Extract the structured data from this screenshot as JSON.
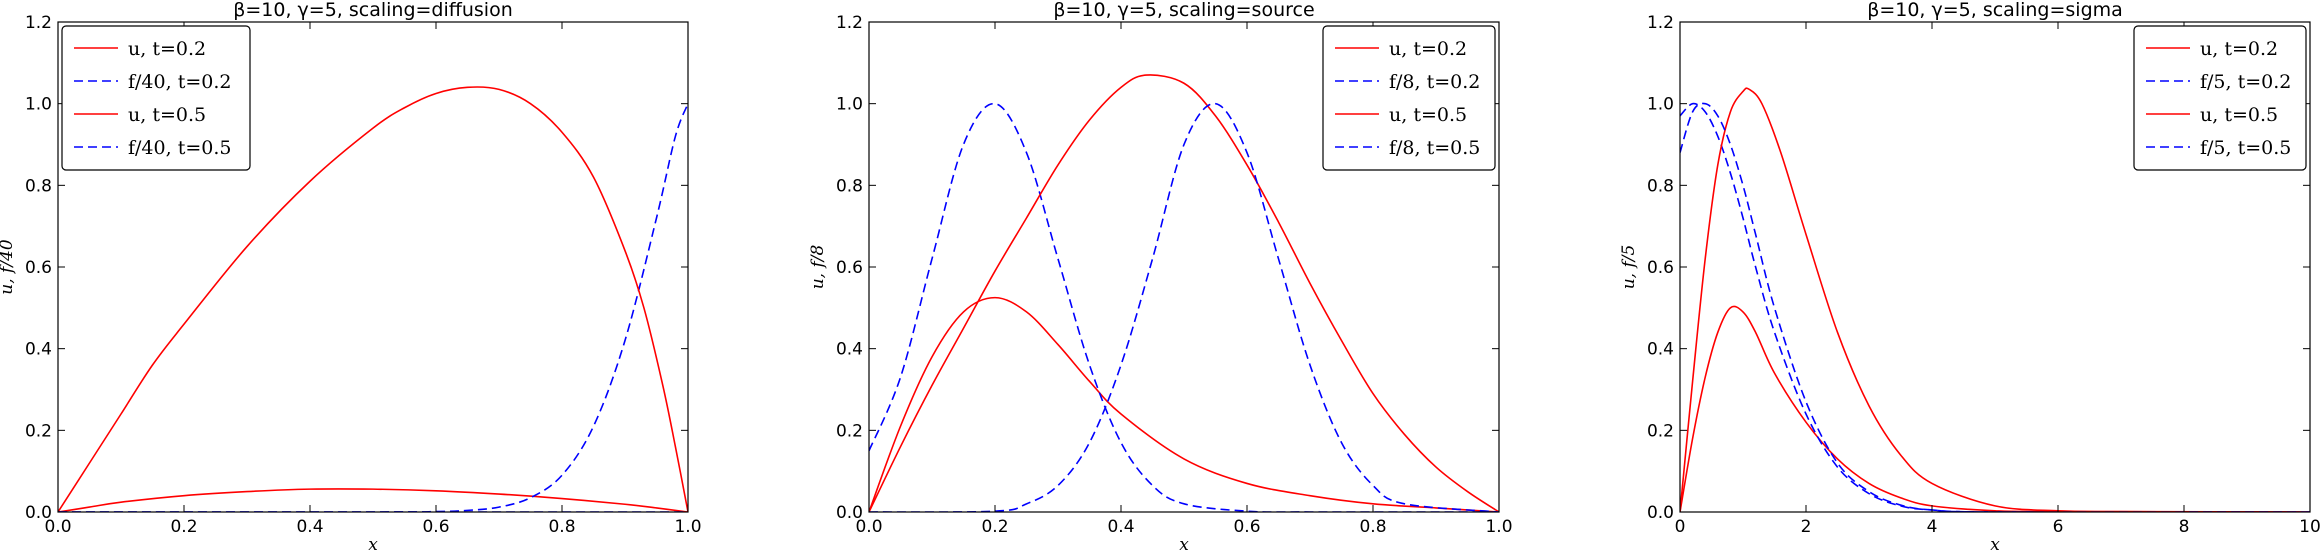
{
  "chart_data": [
    {
      "type": "line",
      "title": "β=10, γ=5, scaling=diffusion",
      "xlabel": "x",
      "ylabel": "u, f/40",
      "xlim": [
        0,
        1
      ],
      "ylim": [
        0,
        1.2
      ],
      "xticks": [
        "0.0",
        "0.2",
        "0.4",
        "0.6",
        "0.8",
        "1.0"
      ],
      "yticks": [
        "0.0",
        "0.2",
        "0.4",
        "0.6",
        "0.8",
        "1.0",
        "1.2"
      ],
      "legend_position": "top-left",
      "series": [
        {
          "name": "u, t=0.2",
          "color": "#ff0000",
          "dash": "solid",
          "x": [
            0,
            0.05,
            0.1,
            0.2,
            0.3,
            0.4,
            0.5,
            0.6,
            0.7,
            0.8,
            0.9,
            0.95,
            1.0
          ],
          "y": [
            0,
            0.012,
            0.024,
            0.04,
            0.05,
            0.056,
            0.056,
            0.052,
            0.044,
            0.033,
            0.019,
            0.01,
            0
          ]
        },
        {
          "name": "f/40, t=0.2",
          "color": "#0000ff",
          "dash": "dashed",
          "x": [
            0,
            0.5,
            0.6,
            0.65,
            0.7,
            0.75,
            0.8,
            0.85,
            0.9,
            0.95,
            0.98,
            1.0
          ],
          "y": [
            0,
            0,
            0.001,
            0.004,
            0.012,
            0.035,
            0.09,
            0.21,
            0.42,
            0.72,
            0.92,
            1.0
          ]
        },
        {
          "name": "u, t=0.5",
          "color": "#ff0000",
          "dash": "solid",
          "x": [
            0,
            0.05,
            0.1,
            0.15,
            0.2,
            0.3,
            0.4,
            0.5,
            0.55,
            0.6,
            0.65,
            0.7,
            0.75,
            0.8,
            0.85,
            0.9,
            0.93,
            0.96,
            0.98,
            1.0
          ],
          "y": [
            0,
            0.12,
            0.24,
            0.36,
            0.46,
            0.65,
            0.81,
            0.94,
            0.99,
            1.025,
            1.04,
            1.035,
            1.0,
            0.93,
            0.82,
            0.64,
            0.5,
            0.31,
            0.16,
            0
          ]
        },
        {
          "name": "f/40, t=0.5",
          "color": "#0000ff",
          "dash": "dashed",
          "x": [
            0,
            1.0
          ],
          "y": [
            0,
            0
          ]
        }
      ]
    },
    {
      "type": "line",
      "title": "β=10, γ=5, scaling=source",
      "xlabel": "x",
      "ylabel": "u, f/8",
      "xlim": [
        0,
        1
      ],
      "ylim": [
        0,
        1.2
      ],
      "xticks": [
        "0.0",
        "0.2",
        "0.4",
        "0.6",
        "0.8",
        "1.0"
      ],
      "yticks": [
        "0.0",
        "0.2",
        "0.4",
        "0.6",
        "0.8",
        "1.0",
        "1.2"
      ],
      "legend_position": "top-right",
      "series": [
        {
          "name": "u, t=0.2",
          "color": "#ff0000",
          "dash": "solid",
          "x": [
            0,
            0.05,
            0.1,
            0.15,
            0.2,
            0.25,
            0.3,
            0.35,
            0.4,
            0.5,
            0.6,
            0.7,
            0.8,
            0.9,
            1.0
          ],
          "y": [
            0,
            0.21,
            0.38,
            0.49,
            0.525,
            0.49,
            0.41,
            0.32,
            0.24,
            0.13,
            0.07,
            0.04,
            0.02,
            0.01,
            0
          ]
        },
        {
          "name": "f/8, t=0.2",
          "color": "#0000ff",
          "dash": "dashed",
          "x": [
            0,
            0.05,
            0.1,
            0.15,
            0.2,
            0.25,
            0.3,
            0.35,
            0.4,
            0.45,
            0.5,
            0.6,
            0.7,
            1.0
          ],
          "y": [
            0.15,
            0.33,
            0.62,
            0.9,
            1.0,
            0.88,
            0.62,
            0.36,
            0.17,
            0.065,
            0.02,
            0.002,
            0,
            0
          ]
        },
        {
          "name": "u, t=0.5",
          "color": "#ff0000",
          "dash": "solid",
          "x": [
            0,
            0.05,
            0.1,
            0.15,
            0.2,
            0.25,
            0.3,
            0.35,
            0.4,
            0.44,
            0.5,
            0.55,
            0.6,
            0.65,
            0.7,
            0.75,
            0.8,
            0.85,
            0.9,
            0.95,
            1.0
          ],
          "y": [
            0,
            0.16,
            0.31,
            0.45,
            0.59,
            0.72,
            0.85,
            0.96,
            1.04,
            1.07,
            1.05,
            0.97,
            0.85,
            0.71,
            0.56,
            0.42,
            0.29,
            0.19,
            0.11,
            0.05,
            0
          ]
        },
        {
          "name": "f/8, t=0.5",
          "color": "#0000ff",
          "dash": "dashed",
          "x": [
            0,
            0.2,
            0.25,
            0.3,
            0.35,
            0.4,
            0.45,
            0.5,
            0.55,
            0.6,
            0.65,
            0.7,
            0.75,
            0.8,
            0.85,
            1.0
          ],
          "y": [
            0,
            0.002,
            0.02,
            0.065,
            0.17,
            0.36,
            0.62,
            0.9,
            1.0,
            0.88,
            0.62,
            0.36,
            0.17,
            0.065,
            0.02,
            0
          ]
        }
      ]
    },
    {
      "type": "line",
      "title": "β=10, γ=5, scaling=sigma",
      "xlabel": "x",
      "ylabel": "u, f/5",
      "xlim": [
        0,
        10
      ],
      "ylim": [
        0,
        1.2
      ],
      "xticks": [
        "0",
        "2",
        "4",
        "6",
        "8",
        "10"
      ],
      "yticks": [
        "0.0",
        "0.2",
        "0.4",
        "0.6",
        "0.8",
        "1.0",
        "1.2"
      ],
      "legend_position": "top-right",
      "series": [
        {
          "name": "u, t=0.2",
          "color": "#ff0000",
          "dash": "solid",
          "x": [
            0,
            0.2,
            0.4,
            0.6,
            0.8,
            1.0,
            1.2,
            1.5,
            2.0,
            2.5,
            3.0,
            3.5,
            4.0,
            5.0,
            6.0,
            10.0
          ],
          "y": [
            0,
            0.18,
            0.33,
            0.44,
            0.5,
            0.49,
            0.44,
            0.34,
            0.22,
            0.13,
            0.07,
            0.035,
            0.015,
            0.003,
            0.001,
            0
          ]
        },
        {
          "name": "f/5, t=0.2",
          "color": "#0000ff",
          "dash": "dashed",
          "x": [
            0,
            0.2,
            0.4,
            0.6,
            0.8,
            1.0,
            1.2,
            1.5,
            2.0,
            2.5,
            3.0,
            3.5,
            4.0,
            5.0,
            10.0
          ],
          "y": [
            0.97,
            1.0,
            0.98,
            0.92,
            0.83,
            0.72,
            0.6,
            0.44,
            0.24,
            0.11,
            0.045,
            0.015,
            0.005,
            0,
            0
          ]
        },
        {
          "name": "u, t=0.5",
          "color": "#ff0000",
          "dash": "solid",
          "x": [
            0,
            0.2,
            0.4,
            0.6,
            0.8,
            1.0,
            1.1,
            1.3,
            1.6,
            2.0,
            2.5,
            3.0,
            3.5,
            4.0,
            5.0,
            6.0,
            7.0,
            10.0
          ],
          "y": [
            0,
            0.32,
            0.62,
            0.85,
            0.98,
            1.03,
            1.035,
            1.0,
            0.88,
            0.68,
            0.44,
            0.26,
            0.14,
            0.07,
            0.015,
            0.003,
            0.001,
            0
          ]
        },
        {
          "name": "f/5, t=0.5",
          "color": "#0000ff",
          "dash": "dashed",
          "x": [
            0,
            0.2,
            0.4,
            0.6,
            0.8,
            1.0,
            1.2,
            1.5,
            2.0,
            2.5,
            3.0,
            3.5,
            4.0,
            5.0,
            10.0
          ],
          "y": [
            0.88,
            0.98,
            1.0,
            0.97,
            0.9,
            0.8,
            0.68,
            0.5,
            0.27,
            0.12,
            0.05,
            0.017,
            0.005,
            0,
            0
          ]
        }
      ]
    }
  ]
}
